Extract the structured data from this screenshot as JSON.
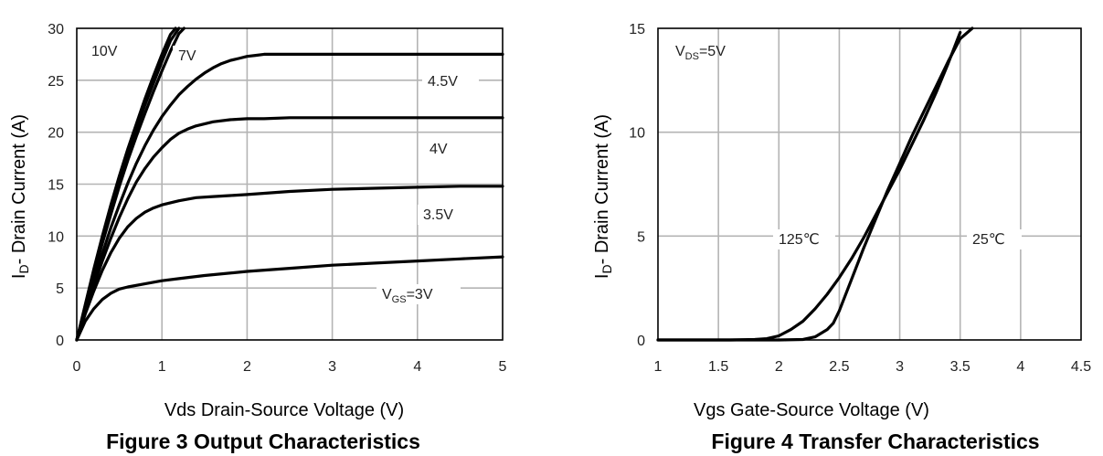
{
  "chart_data": [
    {
      "type": "line",
      "caption": "Figure 3 Output Characteristics",
      "xlabel": "Vds Drain-Source Voltage (V)",
      "ylabel": {
        "main": "I",
        "sub": "D",
        "rest": "- Drain Current (A)"
      },
      "xlim": [
        0,
        5
      ],
      "ylim": [
        0,
        30
      ],
      "xticks": [
        "0",
        "1",
        "2",
        "3",
        "4",
        "5"
      ],
      "yticks": [
        "0",
        "5",
        "10",
        "15",
        "20",
        "25",
        "30"
      ],
      "grid": true,
      "series": [
        {
          "label": {
            "text": "10V"
          },
          "x": [
            0,
            0.1,
            0.2,
            0.3,
            0.4,
            0.5,
            0.6,
            0.7,
            0.8,
            0.9,
            1.0,
            1.1,
            1.16
          ],
          "y": [
            0,
            3.4,
            6.8,
            10.0,
            13.0,
            15.8,
            18.4,
            20.8,
            23.2,
            25.4,
            27.5,
            29.4,
            30
          ]
        },
        {
          "label": null,
          "x": [
            0,
            0.1,
            0.2,
            0.3,
            0.4,
            0.5,
            0.6,
            0.7,
            0.8,
            0.9,
            1.0,
            1.1,
            1.2
          ],
          "y": [
            0,
            3.3,
            6.6,
            9.7,
            12.6,
            15.3,
            17.9,
            20.3,
            22.6,
            24.7,
            26.8,
            28.8,
            30
          ]
        },
        {
          "label": {
            "text": "7V"
          },
          "x": [
            0,
            0.1,
            0.2,
            0.3,
            0.4,
            0.5,
            0.6,
            0.7,
            0.8,
            0.9,
            1.0,
            1.1,
            1.2,
            1.26
          ],
          "y": [
            0,
            3.2,
            6.3,
            9.3,
            12.1,
            14.8,
            17.3,
            19.6,
            21.8,
            23.9,
            25.9,
            27.8,
            29.5,
            30
          ]
        },
        {
          "label": {
            "text": "4.5V"
          },
          "x": [
            0,
            0.1,
            0.2,
            0.3,
            0.4,
            0.5,
            0.6,
            0.7,
            0.8,
            0.9,
            1.0,
            1.1,
            1.2,
            1.3,
            1.4,
            1.5,
            1.6,
            1.7,
            1.8,
            1.9,
            2.0,
            2.1,
            2.2,
            2.4,
            2.6,
            3.0,
            4.0,
            5.0
          ],
          "y": [
            0,
            2.9,
            5.7,
            8.3,
            10.8,
            13.0,
            15.1,
            17.0,
            18.7,
            20.2,
            21.5,
            22.6,
            23.6,
            24.4,
            25.1,
            25.7,
            26.2,
            26.6,
            26.9,
            27.1,
            27.3,
            27.4,
            27.5,
            27.5,
            27.5,
            27.5,
            27.5,
            27.5
          ]
        },
        {
          "label": {
            "text": "4V"
          },
          "x": [
            0,
            0.1,
            0.2,
            0.3,
            0.4,
            0.5,
            0.6,
            0.7,
            0.8,
            0.9,
            1.0,
            1.1,
            1.2,
            1.3,
            1.4,
            1.5,
            1.6,
            1.8,
            2.0,
            2.2,
            2.5,
            3.0,
            4.0,
            5.0
          ],
          "y": [
            0,
            2.7,
            5.2,
            7.6,
            9.8,
            11.8,
            13.6,
            15.2,
            16.5,
            17.6,
            18.5,
            19.3,
            19.9,
            20.3,
            20.6,
            20.8,
            21.0,
            21.2,
            21.3,
            21.3,
            21.4,
            21.4,
            21.4,
            21.4
          ]
        },
        {
          "label": {
            "text": "3.5V"
          },
          "x": [
            0,
            0.1,
            0.2,
            0.3,
            0.4,
            0.5,
            0.6,
            0.7,
            0.8,
            0.9,
            1.0,
            1.2,
            1.4,
            1.6,
            1.8,
            2.0,
            2.5,
            3.0,
            3.5,
            4.0,
            4.5,
            5.0
          ],
          "y": [
            0,
            2.5,
            4.7,
            6.7,
            8.4,
            9.8,
            10.9,
            11.7,
            12.3,
            12.7,
            13.0,
            13.4,
            13.7,
            13.8,
            13.9,
            14.0,
            14.3,
            14.5,
            14.6,
            14.7,
            14.8,
            14.8
          ]
        },
        {
          "label": {
            "text": "V",
            "sub": "GS",
            "rest": "=3V"
          },
          "x": [
            0,
            0.1,
            0.2,
            0.3,
            0.4,
            0.5,
            0.6,
            0.8,
            1.0,
            1.2,
            1.5,
            2.0,
            2.5,
            3.0,
            3.5,
            4.0,
            4.5,
            5.0
          ],
          "y": [
            0,
            1.8,
            3.0,
            3.9,
            4.5,
            4.9,
            5.1,
            5.4,
            5.7,
            5.9,
            6.2,
            6.6,
            6.9,
            7.2,
            7.4,
            7.6,
            7.8,
            8.0
          ]
        }
      ]
    },
    {
      "type": "line",
      "caption": "Figure 4 Transfer Characteristics",
      "xlabel": "Vgs Gate-Source Voltage (V)",
      "ylabel": {
        "main": "I",
        "sub": "D",
        "rest": "- Drain Current (A)"
      },
      "xlim": [
        1,
        4.5
      ],
      "ylim": [
        0,
        15
      ],
      "xticks": [
        "1",
        "1.5",
        "2",
        "2.5",
        "3",
        "3.5",
        "4",
        "4.5"
      ],
      "yticks": [
        "0",
        "5",
        "10",
        "15"
      ],
      "grid": true,
      "annotation": {
        "text": "V",
        "sub": "DS",
        "rest": "=5V"
      },
      "series": [
        {
          "label": {
            "text": "125℃"
          },
          "x": [
            1.0,
            1.6,
            1.8,
            1.9,
            2.0,
            2.1,
            2.2,
            2.3,
            2.4,
            2.5,
            2.6,
            2.7,
            2.8,
            2.9,
            3.0,
            3.1,
            3.2,
            3.3,
            3.4,
            3.5
          ],
          "y": [
            0,
            0,
            0.02,
            0.06,
            0.2,
            0.5,
            0.9,
            1.5,
            2.2,
            3.0,
            3.9,
            4.9,
            6.0,
            7.1,
            8.2,
            9.4,
            10.6,
            11.9,
            13.3,
            14.8
          ]
        },
        {
          "label": {
            "text": "25℃"
          },
          "x": [
            1.0,
            2.0,
            2.2,
            2.3,
            2.4,
            2.45,
            2.5,
            2.6,
            2.7,
            2.8,
            2.9,
            3.0,
            3.1,
            3.2,
            3.3,
            3.4,
            3.5,
            3.6
          ],
          "y": [
            0,
            0,
            0.02,
            0.15,
            0.5,
            0.8,
            1.4,
            2.9,
            4.4,
            5.8,
            7.2,
            8.5,
            9.8,
            11.0,
            12.2,
            13.4,
            14.5,
            15.0
          ]
        }
      ]
    }
  ]
}
